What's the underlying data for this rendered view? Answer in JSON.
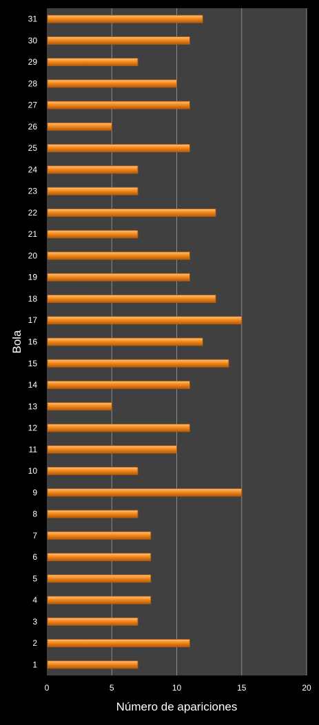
{
  "chart_data": {
    "type": "bar",
    "orientation": "horizontal",
    "title": "",
    "xlabel": "Número de apariciones",
    "ylabel": "Bola",
    "xlim": [
      0,
      20
    ],
    "x_ticks": [
      0,
      5,
      10,
      15,
      20
    ],
    "grid": "vertical",
    "legend": "none",
    "colors": {
      "background": "#000000",
      "plot_area": "#404040",
      "grid": "#8c8c8c",
      "bar_fill": "#f28a1e",
      "bar_light": "#ffc27a",
      "bar_dark": "#b55a08",
      "text": "#ffffff"
    },
    "categories": [
      "1",
      "2",
      "3",
      "4",
      "5",
      "6",
      "7",
      "8",
      "9",
      "10",
      "11",
      "12",
      "13",
      "14",
      "15",
      "16",
      "17",
      "18",
      "19",
      "20",
      "21",
      "22",
      "23",
      "24",
      "25",
      "26",
      "27",
      "28",
      "29",
      "30",
      "31"
    ],
    "values": [
      7,
      11,
      7,
      8,
      8,
      8,
      8,
      7,
      15,
      7,
      10,
      11,
      5,
      11,
      14,
      12,
      15,
      13,
      11,
      11,
      7,
      13,
      7,
      7,
      11,
      5,
      11,
      10,
      7,
      11,
      12
    ]
  }
}
